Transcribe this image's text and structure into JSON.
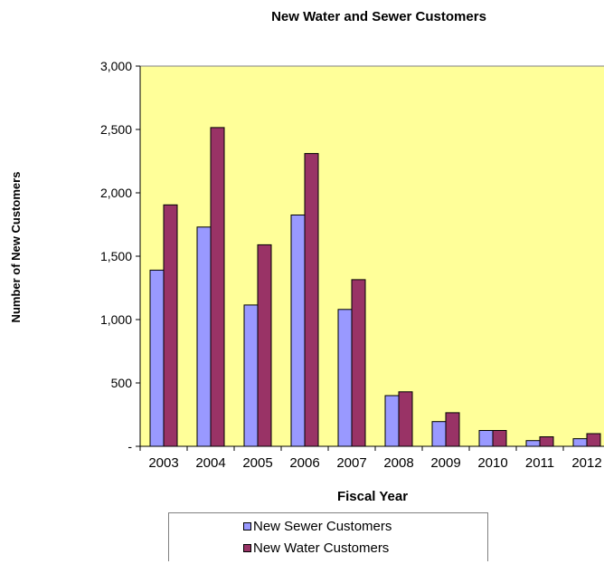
{
  "chart_data": {
    "type": "bar",
    "title": "New Water and Sewer Customers",
    "xlabel": "Fiscal Year",
    "ylabel": "Number of New Customers",
    "categories": [
      "2003",
      "2004",
      "2005",
      "2006",
      "2007",
      "2008",
      "2009",
      "2010",
      "2011",
      "2012"
    ],
    "series": [
      {
        "name": "New Sewer Customers",
        "color": "#9999ff",
        "values": [
          1390,
          1730,
          1115,
          1825,
          1080,
          400,
          195,
          125,
          45,
          60
        ]
      },
      {
        "name": "New Water Customers",
        "color": "#993366",
        "values": [
          1905,
          2515,
          1590,
          2310,
          1315,
          430,
          265,
          125,
          75,
          100
        ]
      }
    ],
    "ylim": [
      0,
      3000
    ],
    "yticks": [
      {
        "value": 0,
        "label": "-"
      },
      {
        "value": 500,
        "label": "500"
      },
      {
        "value": 1000,
        "label": "1,000"
      },
      {
        "value": 1500,
        "label": "1,500"
      },
      {
        "value": 2000,
        "label": "2,000"
      },
      {
        "value": 2500,
        "label": "2,500"
      },
      {
        "value": 3000,
        "label": "3,000"
      }
    ],
    "plot_background": "#ffff99",
    "grid": false,
    "legend_position": "bottom"
  }
}
